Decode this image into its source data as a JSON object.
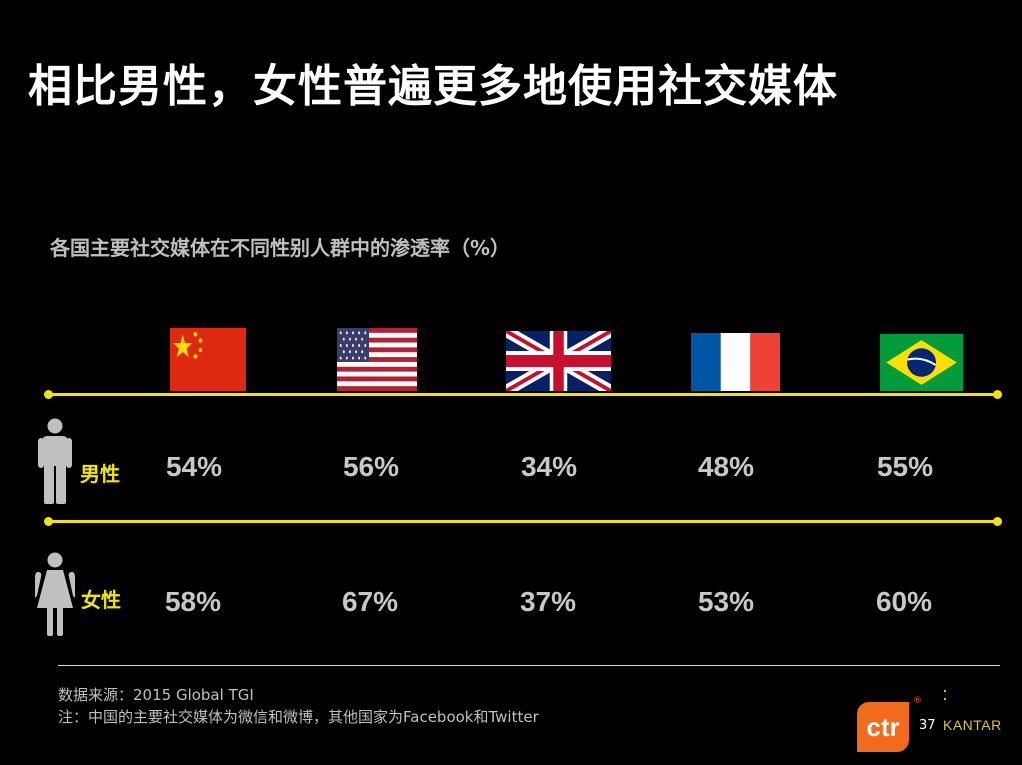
{
  "title": "相比男性，女性普遍更多地使用社交媒体",
  "chart_data": {
    "type": "table",
    "subtitle": "各国主要社交媒体在不同性别人群中的渗透率（%）",
    "rows": [
      {
        "label": "男性",
        "values": [
          "54%",
          "56%",
          "34%",
          "48%",
          "55%"
        ]
      },
      {
        "label": "女性",
        "values": [
          "58%",
          "67%",
          "37%",
          "53%",
          "60%"
        ]
      }
    ]
  },
  "flags": [
    "china-flag",
    "usa-flag",
    "uk-flag",
    "france-flag",
    "brazil-flag"
  ],
  "icons": {
    "male": "male-person-icon",
    "female": "female-person-icon"
  },
  "footer": {
    "source": "数据来源：2015 Global TGI",
    "note": "注：中国的主要社交媒体为微信和微博，其他国家为Facebook和Twitter"
  },
  "logo": {
    "ctr": "ctr",
    "kantar": "KANTAR",
    "registered": "®"
  },
  "page_number": "37",
  "colors": {
    "background": "#000000",
    "accent": "#f2e600",
    "text_value": "#c8c8c8",
    "logo_orange": "#f26a1b"
  }
}
